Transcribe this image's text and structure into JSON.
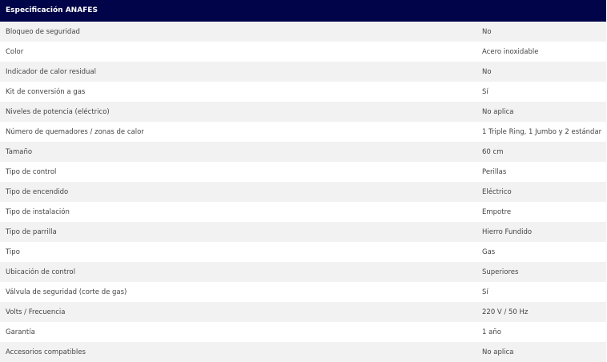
{
  "header": {
    "title": "Especificación ANAFES"
  },
  "rows": [
    {
      "label": "Bloqueo de seguridad",
      "value": "No"
    },
    {
      "label": "Color",
      "value": "Acero inoxidable"
    },
    {
      "label": "Indicador de calor residual",
      "value": "No"
    },
    {
      "label": "Kit de conversión a gas",
      "value": "Sí"
    },
    {
      "label": "Niveles de potencia (eléctrico)",
      "value": "No aplica"
    },
    {
      "label": "Número de quemadores / zonas de calor",
      "value": "1 Triple Ring, 1 Jumbo y 2 estándar"
    },
    {
      "label": "Tamaño",
      "value": "60 cm"
    },
    {
      "label": "Tipo de control",
      "value": "Perillas"
    },
    {
      "label": "Tipo de encendido",
      "value": "Eléctrico"
    },
    {
      "label": "Tipo de instalación",
      "value": "Empotre"
    },
    {
      "label": "Tipo de parrilla",
      "value": "Hierro Fundido"
    },
    {
      "label": "Tipo",
      "value": "Gas"
    },
    {
      "label": "Ubicación de control",
      "value": "Superiores"
    },
    {
      "label": "Válvula de seguridad (corte de gas)",
      "value": "Sí"
    },
    {
      "label": "Volts / Frecuencia",
      "value": "220 V / 50 Hz"
    },
    {
      "label": "Garantía",
      "value": "1 año"
    },
    {
      "label": "Accesorios compatibles",
      "value": "No aplica"
    }
  ]
}
